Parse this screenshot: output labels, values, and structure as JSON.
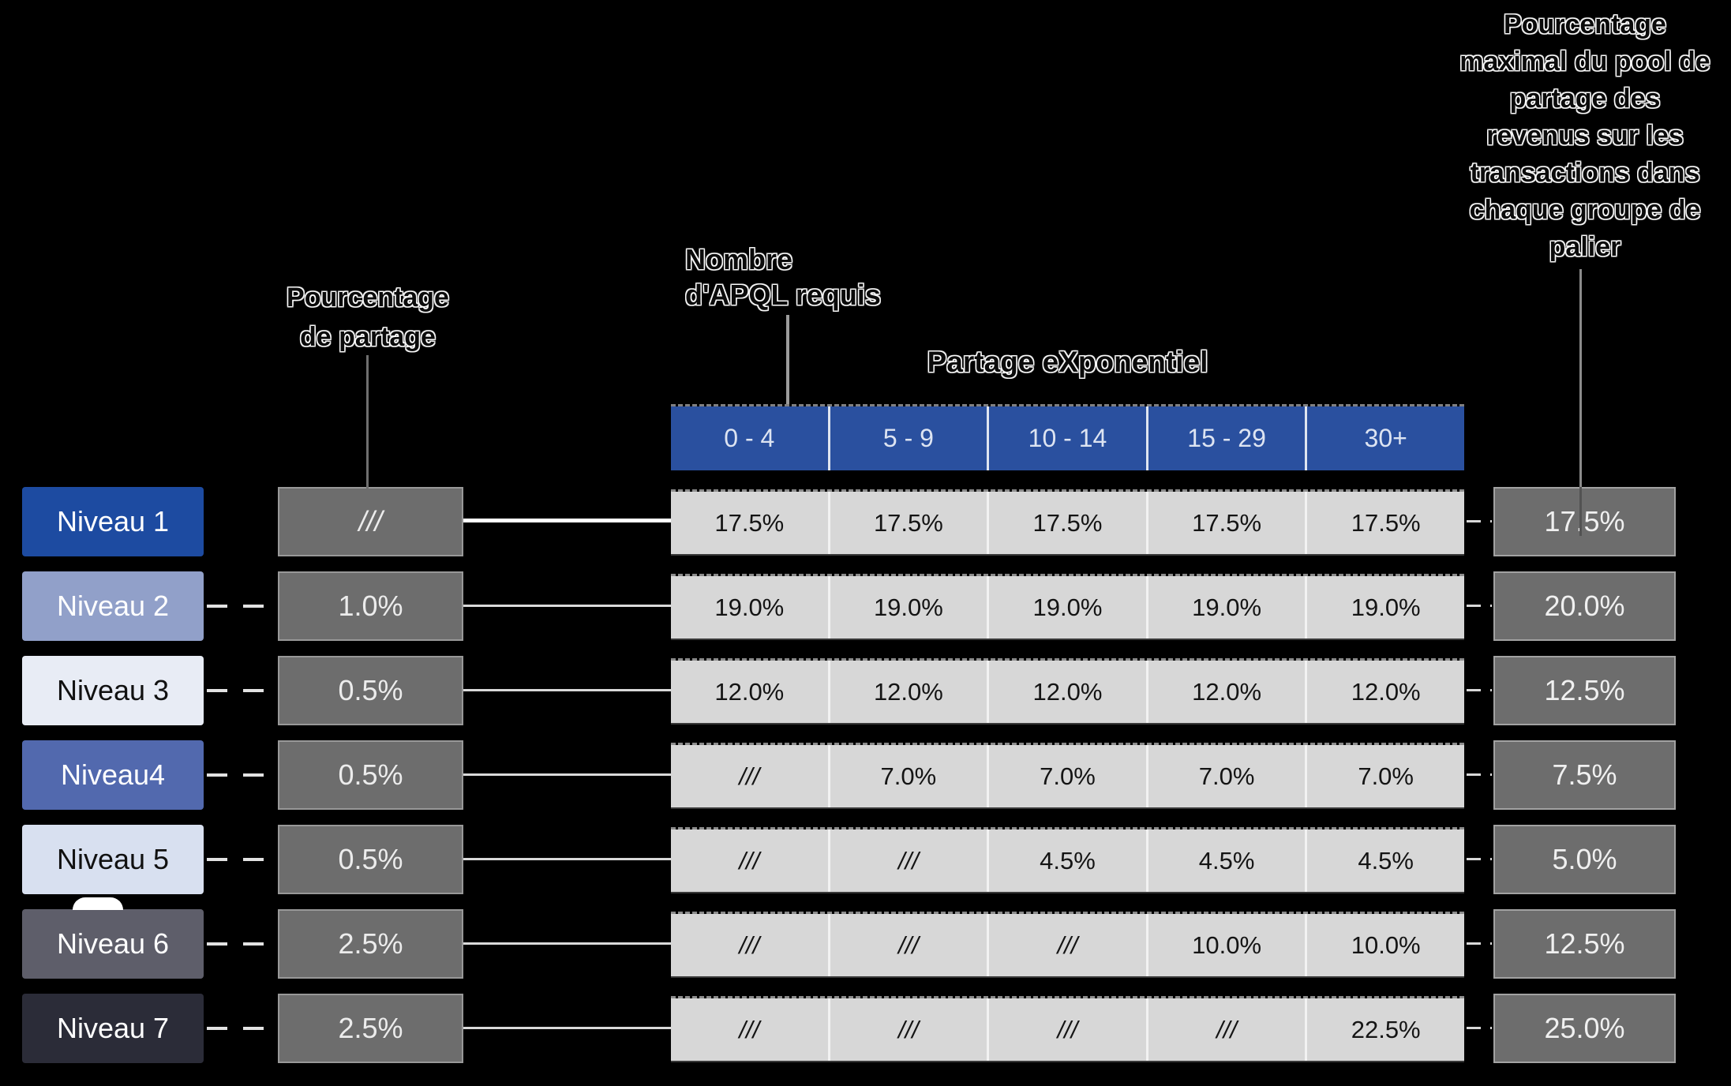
{
  "annotations": {
    "share_label": "Pourcentage\nde partage",
    "apql_label": "Nombre\nd'APQL requis",
    "table_title": "Partage eXponentiel",
    "max_pool_label": "Pourcentage\nmaximal du pool de\npartage des\nrevenus sur les\ntransactions dans\nchaque groupe de\npalier"
  },
  "table": {
    "columns": [
      "0 - 4",
      "5 - 9",
      "10 - 14",
      "15 - 29",
      "30+"
    ],
    "header_bg": "#2a509f",
    "cell_bg": "#d7d7d7",
    "na_symbol": "///"
  },
  "rows": [
    {
      "level": "Niveau 1",
      "level_bg": "#1d4ba1",
      "level_color": "#ffffff",
      "share": "///",
      "cells": [
        "17.5%",
        "17.5%",
        "17.5%",
        "17.5%",
        "17.5%"
      ],
      "max": "17.5%"
    },
    {
      "level": "Niveau 2",
      "level_bg": "#91a0c9",
      "level_color": "#ffffff",
      "share": "1.0%",
      "cells": [
        "19.0%",
        "19.0%",
        "19.0%",
        "19.0%",
        "19.0%"
      ],
      "max": "20.0%"
    },
    {
      "level": "Niveau 3",
      "level_bg": "#e8ecf5",
      "level_color": "#111111",
      "share": "0.5%",
      "cells": [
        "12.0%",
        "12.0%",
        "12.0%",
        "12.0%",
        "12.0%"
      ],
      "max": "12.5%"
    },
    {
      "level": "Niveau4",
      "level_bg": "#5269ae",
      "level_color": "#ffffff",
      "share": "0.5%",
      "cells": [
        "///",
        "7.0%",
        "7.0%",
        "7.0%",
        "7.0%"
      ],
      "max": "7.5%"
    },
    {
      "level": "Niveau 5",
      "level_bg": "#d8e0f0",
      "level_color": "#111111",
      "share": "0.5%",
      "cells": [
        "///",
        "///",
        "4.5%",
        "4.5%",
        "4.5%"
      ],
      "max": "5.0%"
    },
    {
      "level": "Niveau 6",
      "level_bg": "#5e5e6a",
      "level_color": "#ffffff",
      "share": "2.5%",
      "cells": [
        "///",
        "///",
        "///",
        "10.0%",
        "10.0%"
      ],
      "max": "12.5%"
    },
    {
      "level": "Niveau 7",
      "level_bg": "#2b2c38",
      "level_color": "#ffffff",
      "share": "2.5%",
      "cells": [
        "///",
        "///",
        "///",
        "///",
        "22.5%"
      ],
      "max": "25.0%"
    }
  ],
  "colors": {
    "background": "#000000",
    "header_blue": "#2a509f",
    "tier1_blue": "#1d4ba1",
    "gray_box": "#6d6d6d",
    "cell_gray": "#d7d7d7"
  }
}
